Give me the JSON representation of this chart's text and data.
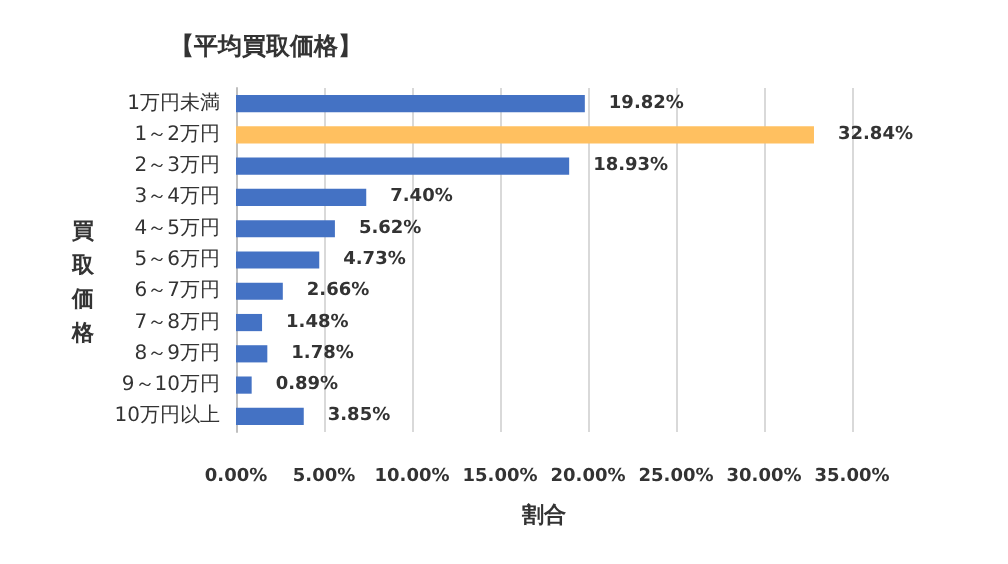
{
  "chart_data": {
    "type": "bar",
    "orientation": "horizontal",
    "title": "【平均買取価格】",
    "xlabel": "割合",
    "ylabel": "買取価格",
    "categories": [
      "1万円未満",
      "1～2万円",
      "2～3万円",
      "3～4万円",
      "4～5万円",
      "5～6万円",
      "6～7万円",
      "7～8万円",
      "8～9万円",
      "9～10万円",
      "10万円以上"
    ],
    "values": [
      19.82,
      32.84,
      18.93,
      7.4,
      5.62,
      4.73,
      2.66,
      1.48,
      1.78,
      0.89,
      3.85
    ],
    "colors": [
      "#4472c4",
      "#ffc060",
      "#4472c4",
      "#4472c4",
      "#4472c4",
      "#4472c4",
      "#4472c4",
      "#4472c4",
      "#4472c4",
      "#4472c4",
      "#4472c4"
    ],
    "value_labels": [
      "19.82%",
      "32.84%",
      "18.93%",
      "7.40%",
      "5.62%",
      "4.73%",
      "2.66%",
      "1.48%",
      "1.78%",
      "0.89%",
      "3.85%"
    ],
    "xlim": [
      0,
      35
    ],
    "xticks": [
      {
        "value": 0,
        "label": "0.00%"
      },
      {
        "value": 5,
        "label": "5.00%"
      },
      {
        "value": 10,
        "label": "10.00%"
      },
      {
        "value": 15,
        "label": "15.00%"
      },
      {
        "value": 20,
        "label": "20.00%"
      },
      {
        "value": 25,
        "label": "25.00%"
      },
      {
        "value": 30,
        "label": "30.00%"
      },
      {
        "value": 35,
        "label": "35.00%"
      }
    ],
    "grid": "x"
  }
}
